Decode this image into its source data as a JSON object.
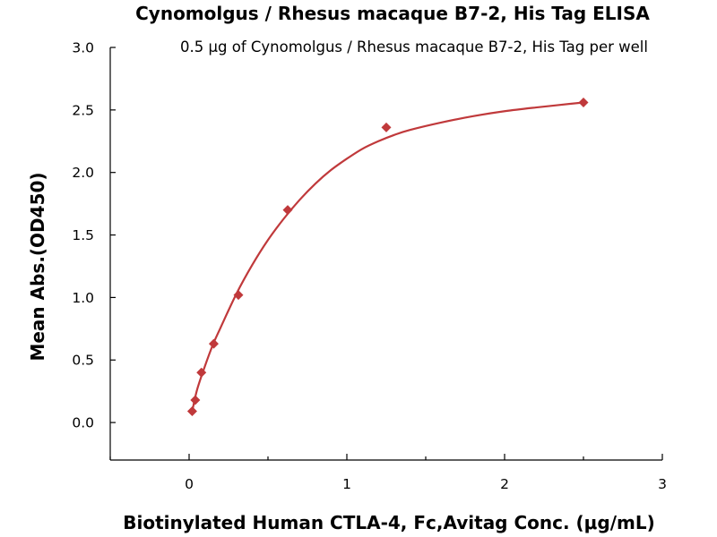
{
  "chart_data": {
    "type": "scatter",
    "title": "Cynomolgus / Rhesus macaque B7-2, His Tag ELISA",
    "subtitle": "0.5 μg of Cynomolgus / Rhesus macaque B7-2, His Tag per well",
    "xlabel": "Biotinylated Human CTLA-4, Fc,Avitag Conc. (μg/mL)",
    "ylabel": "Mean Abs.(OD450)",
    "xlim": [
      -0.5,
      3
    ],
    "ylim": [
      -0.3,
      3.0
    ],
    "x_ticks": [
      0,
      1,
      2,
      3
    ],
    "x_tick_labels": [
      "0",
      "1",
      "2",
      "3"
    ],
    "x_minor_ticks": [
      -0.5,
      0.5,
      1.5,
      2.5
    ],
    "y_ticks": [
      0.0,
      0.5,
      1.0,
      1.5,
      2.0,
      2.5,
      3.0
    ],
    "y_tick_labels": [
      "0.0",
      "0.5",
      "1.0",
      "1.5",
      "2.0",
      "2.5",
      "3.0"
    ],
    "grid": false,
    "series": [
      {
        "marker": "diamond",
        "color": "#c0393b",
        "x": [
          0.0195,
          0.039,
          0.078,
          0.156,
          0.3125,
          0.625,
          1.25,
          2.5
        ],
        "y": [
          0.09,
          0.18,
          0.4,
          0.63,
          1.02,
          1.7,
          2.36,
          2.56
        ]
      }
    ],
    "fit_curve": {
      "color": "#c0393b",
      "x": [
        0.0195,
        0.05,
        0.1,
        0.15,
        0.2,
        0.3,
        0.4,
        0.5,
        0.6,
        0.7,
        0.8,
        0.9,
        1.0,
        1.1,
        1.2,
        1.3,
        1.4,
        1.6,
        1.8,
        2.0,
        2.2,
        2.5
      ],
      "y": [
        0.09,
        0.26,
        0.45,
        0.62,
        0.76,
        1.03,
        1.26,
        1.46,
        1.63,
        1.78,
        1.91,
        2.02,
        2.11,
        2.19,
        2.25,
        2.3,
        2.34,
        2.4,
        2.45,
        2.49,
        2.52,
        2.56
      ]
    }
  }
}
